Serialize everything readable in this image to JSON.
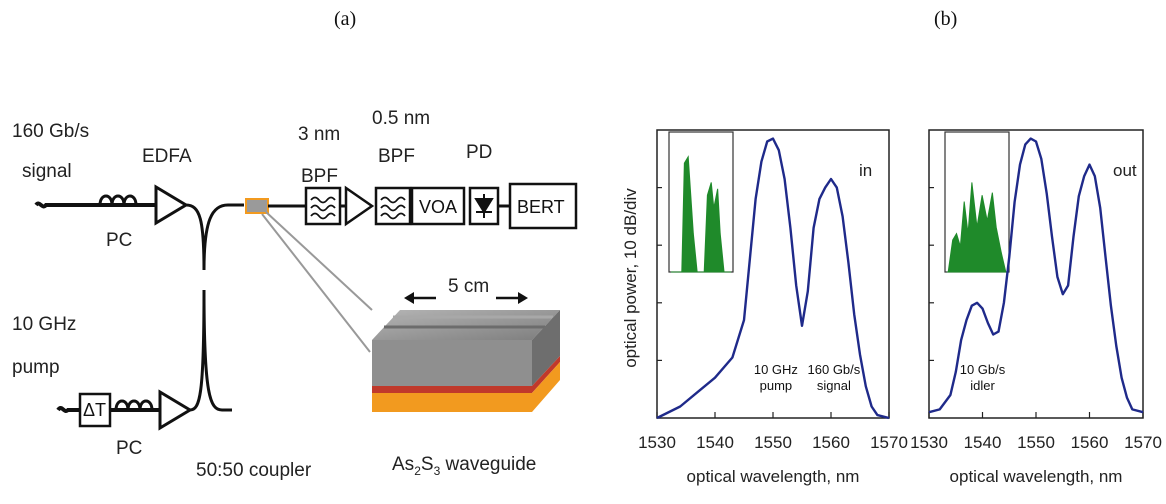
{
  "panel_a": {
    "label": "(a)",
    "signal_label": [
      "160 Gb/s",
      "signal"
    ],
    "pump_label": [
      "10 GHz",
      "pump"
    ],
    "edfa_label": "EDFA",
    "pc_label": "PC",
    "delay_label": "ΔT",
    "coupler_label": "50:50 coupler",
    "bpf1_label": [
      "3 nm",
      "BPF"
    ],
    "bpf2_label": [
      "0.5 nm",
      "BPF"
    ],
    "pd_label": "PD",
    "voa_label": "VOA",
    "bert_label": "BERT",
    "length_label": "5 cm",
    "waveguide_label": [
      "As",
      "2",
      "S",
      "3",
      " waveguide"
    ],
    "colors": {
      "waveguide_top": "#8f8f8f",
      "waveguide_orange": "#f29a1f",
      "waveguide_red": "#c0392b"
    }
  },
  "panel_b": {
    "label": "(b)",
    "ylabel": "optical power, 10 dB/div",
    "xlabel": "optical wavelength, nm",
    "colors": {
      "trace": "#1f2a8a",
      "inset_fill": "#1f8a2a"
    }
  },
  "chart_data": [
    {
      "type": "line",
      "title": "in",
      "xlabel": "optical wavelength, nm",
      "ylabel": "optical power, 10 dB/div",
      "xlim": [
        1530,
        1570
      ],
      "ylim": [
        0,
        10
      ],
      "xticks": [
        "1530",
        "1540",
        "1550",
        "1560",
        "1570"
      ],
      "annotations": [
        {
          "text": [
            "10 GHz",
            "pump"
          ],
          "x": 1550.5,
          "y": 0.9
        },
        {
          "text": [
            "160 Gb/s",
            "signal"
          ],
          "x": 1560.5,
          "y": 0.9
        }
      ],
      "series": [
        {
          "x": [
            1530,
            1534,
            1537,
            1540,
            1543,
            1545,
            1546,
            1547,
            1548,
            1549,
            1550,
            1551,
            1552,
            1553,
            1554,
            1555,
            1556,
            1557,
            1558,
            1559,
            1560,
            1561,
            1562,
            1563,
            1564,
            1565,
            1566,
            1567,
            1568,
            1570
          ],
          "y": [
            0,
            0.4,
            0.9,
            1.4,
            2.1,
            3.4,
            5.5,
            7.6,
            8.9,
            9.6,
            9.7,
            9.3,
            8.3,
            6.6,
            4.6,
            3.2,
            4.4,
            6.6,
            7.6,
            8.0,
            8.3,
            8.0,
            7.0,
            5.4,
            3.6,
            2.2,
            1.1,
            0.4,
            0.1,
            0
          ]
        }
      ]
    },
    {
      "type": "line",
      "title": "out",
      "xlabel": "optical wavelength, nm",
      "xlim": [
        1530,
        1570
      ],
      "ylim": [
        0,
        10
      ],
      "xticks": [
        "1530",
        "1540",
        "1550",
        "1560",
        "1570"
      ],
      "annotations": [
        {
          "text": [
            "10 Gb/s",
            "idler"
          ],
          "x": 1540,
          "y": 0.9
        }
      ],
      "series": [
        {
          "x": [
            1530,
            1532,
            1534,
            1535,
            1536,
            1537,
            1538,
            1539,
            1540,
            1541,
            1542,
            1543,
            1544,
            1545,
            1546,
            1547,
            1548,
            1549,
            1550,
            1551,
            1552,
            1553,
            1554,
            1555,
            1556,
            1557,
            1558,
            1559,
            1560,
            1561,
            1562,
            1563,
            1564,
            1565,
            1566,
            1567,
            1568,
            1570
          ],
          "y": [
            0.2,
            0.3,
            0.8,
            1.6,
            2.7,
            3.4,
            3.9,
            4.0,
            3.8,
            3.3,
            2.9,
            3.0,
            4.0,
            5.6,
            7.5,
            8.8,
            9.5,
            9.7,
            9.6,
            9.0,
            7.8,
            6.3,
            4.9,
            4.3,
            4.6,
            6.3,
            7.7,
            8.4,
            8.8,
            8.4,
            7.3,
            5.6,
            3.9,
            2.5,
            1.4,
            0.7,
            0.3,
            0.2
          ]
        }
      ]
    }
  ]
}
